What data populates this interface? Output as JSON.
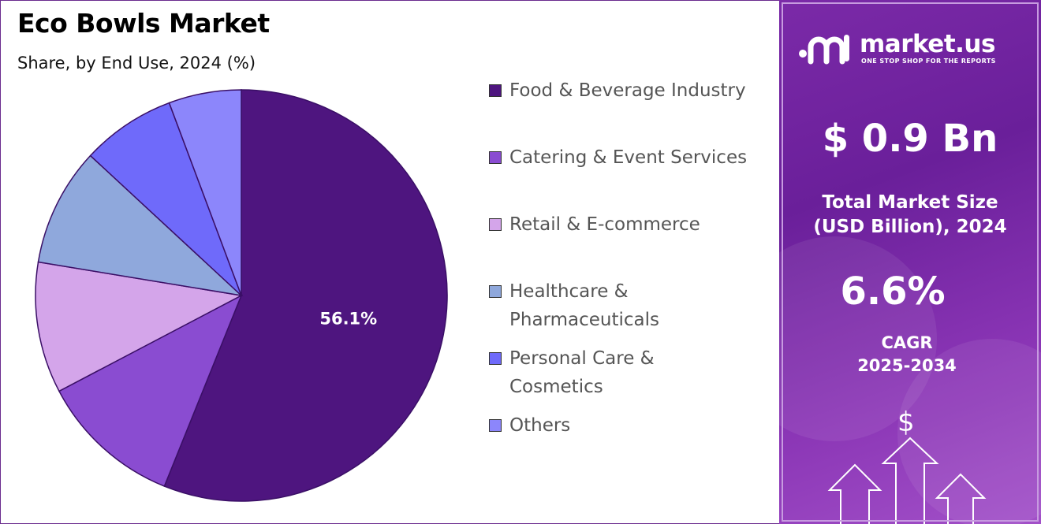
{
  "brand": {
    "name": "market.us",
    "tagline": "ONE STOP SHOP FOR THE REPORTS",
    "panel_color": "#6a1f9a"
  },
  "stats": {
    "market_size_value": "$ 0.9 Bn",
    "market_size_label_line1": "Total Market Size",
    "market_size_label_line2": "(USD Billion), 2024",
    "cagr_value": "6.6%",
    "cagr_label_line1": "CAGR",
    "cagr_label_line2": "2025-2034"
  },
  "decor": {
    "dollar_sign": "$",
    "icons": [
      "logo-icon",
      "arrow-up-icon"
    ]
  },
  "chart_data": {
    "type": "pie",
    "title": "Eco Bowls Market",
    "subtitle": "Share, by End Use, 2024 (%)",
    "legend_position": "right",
    "series": [
      {
        "name": "Food & Beverage Industry",
        "value": 56.1,
        "label": "56.1%",
        "color": "#4e157f"
      },
      {
        "name": "Catering & Event Services",
        "value": 11.2,
        "label": "",
        "color": "#8a4cd1"
      },
      {
        "name": "Retail & E-commerce",
        "value": 10.3,
        "label": "",
        "color": "#d4a5ea"
      },
      {
        "name": "Healthcare & Pharmaceuticals",
        "value": 9.3,
        "label": "",
        "color": "#8fa8dc"
      },
      {
        "name": "Personal Care & Cosmetics",
        "value": 7.4,
        "label": "",
        "color": "#6f6afa"
      },
      {
        "name": "Others",
        "value": 5.7,
        "label": "",
        "color": "#8c86fb"
      }
    ]
  }
}
